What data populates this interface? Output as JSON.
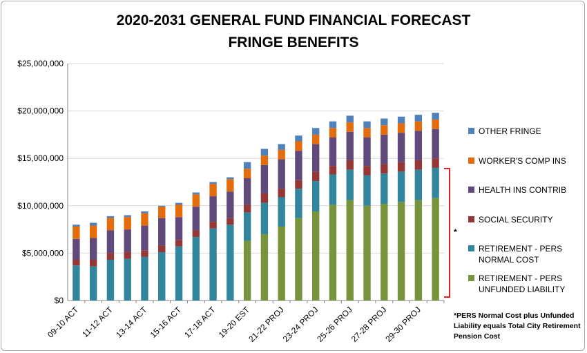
{
  "chart_data": {
    "type": "bar",
    "stacked": true,
    "title": "2020-2031 GENERAL FUND FINANCIAL FORECAST",
    "subtitle": "FRINGE BENEFITS",
    "y_ticks": [
      "$0",
      "$5,000,000",
      "$10,000,000",
      "$15,000,000",
      "$20,000,000",
      "$25,000,000"
    ],
    "ylim": [
      0,
      25000000
    ],
    "grid": "horizontal",
    "legend_position": "right",
    "categories": [
      "09-10 ACT",
      "10-11 ACT",
      "11-12 ACT",
      "12-13 ACT",
      "13-14 ACT",
      "14-15 ACT",
      "15-16 ACT",
      "16-17 ACT",
      "17-18 ACT",
      "18-19 ACT",
      "19-20 EST",
      "20-21 PROJ",
      "21-22 PROJ",
      "22-23 PROJ",
      "23-24 PROJ",
      "24-25 PROJ",
      "25-26 PROJ",
      "26-27 PROJ",
      "27-28 PROJ",
      "28-29 PROJ",
      "29-30 PROJ",
      "30-31 PROJ"
    ],
    "x_tick_labels": [
      "09-10 ACT",
      "",
      "11-12 ACT",
      "",
      "13-14 ACT",
      "",
      "15-16 ACT",
      "",
      "17-18 ACT",
      "",
      "19-20 EST",
      "",
      "21-22 PROJ",
      "",
      "23-24 PROJ",
      "",
      "25-26 PROJ",
      "",
      "27-28 PROJ",
      "",
      "29-30 PROJ",
      ""
    ],
    "series": [
      {
        "name": "RETIREMENT - PERS UNFUNDED LIABILITY",
        "color": "#77933c",
        "values": [
          0,
          0,
          0,
          0,
          0,
          0,
          0,
          0,
          0,
          0,
          6300000,
          7000000,
          7800000,
          8700000,
          9400000,
          10100000,
          10600000,
          10000000,
          10200000,
          10400000,
          10600000,
          10800000
        ]
      },
      {
        "name": "RETIREMENT - PERS NORMAL COST",
        "color": "#31859c",
        "values": [
          3700000,
          3600000,
          4300000,
          4400000,
          4600000,
          5100000,
          5700000,
          6700000,
          7600000,
          8000000,
          3000000,
          3300000,
          3100000,
          3100000,
          3200000,
          3200000,
          3200000,
          3200000,
          3200000,
          3200000,
          3200000,
          3200000
        ]
      },
      {
        "name": "SOCIAL SECURITY",
        "color": "#953735",
        "values": [
          600000,
          700000,
          700000,
          700000,
          700000,
          700000,
          700000,
          700000,
          700000,
          700000,
          800000,
          1000000,
          900000,
          900000,
          1000000,
          900000,
          1000000,
          1000000,
          1000000,
          1000000,
          1000000,
          1000000
        ]
      },
      {
        "name": "HEALTH INS CONTRIB",
        "color": "#604a7b",
        "values": [
          2200000,
          2300000,
          2400000,
          2400000,
          2600000,
          2900000,
          2400000,
          2500000,
          2700000,
          2800000,
          2800000,
          3000000,
          3100000,
          3100000,
          2900000,
          3000000,
          3000000,
          3000000,
          3100000,
          3100000,
          3100000,
          3100000
        ]
      },
      {
        "name": "WORKER'S COMP INS",
        "color": "#e46c0a",
        "values": [
          1300000,
          1300000,
          1300000,
          1300000,
          1300000,
          1200000,
          1300000,
          1300000,
          1300000,
          1300000,
          1000000,
          1000000,
          1000000,
          1000000,
          1000000,
          1000000,
          1000000,
          1000000,
          1000000,
          1000000,
          1000000,
          1000000
        ]
      },
      {
        "name": "OTHER FRINGE",
        "color": "#4f81bd",
        "values": [
          200000,
          300000,
          200000,
          200000,
          200000,
          100000,
          200000,
          200000,
          200000,
          200000,
          700000,
          700000,
          600000,
          600000,
          700000,
          700000,
          700000,
          700000,
          700000,
          700000,
          700000,
          700000
        ]
      }
    ],
    "legend": [
      {
        "lines": [
          "OTHER FRINGE"
        ],
        "color": "#4f81bd"
      },
      {
        "lines": [
          "WORKER'S COMP INS"
        ],
        "color": "#e46c0a"
      },
      {
        "lines": [
          "HEALTH INS CONTRIB"
        ],
        "color": "#604a7b"
      },
      {
        "lines": [
          "SOCIAL SECURITY"
        ],
        "color": "#953735"
      },
      {
        "lines": [
          "RETIREMENT - PERS",
          "NORMAL COST"
        ],
        "color": "#31859c"
      },
      {
        "lines": [
          "RETIREMENT - PERS",
          "UNFUNDED LIABILITY"
        ],
        "color": "#77933c"
      }
    ],
    "bracket_color": "#e31b23",
    "annotation_marker": "*",
    "annotation": "*PERS Normal Cost plus Unfunded Liability equals Total City Retirement Pension Cost"
  }
}
